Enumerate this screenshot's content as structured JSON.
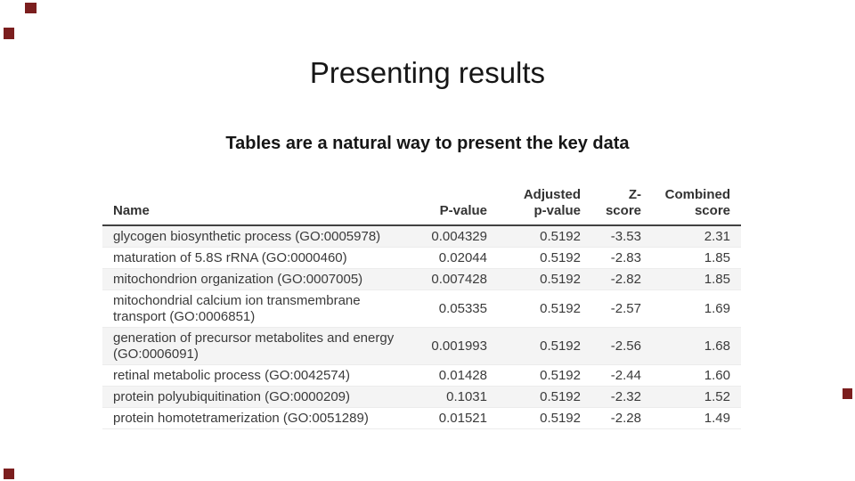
{
  "slide": {
    "title": "Presenting results",
    "subtitle": "Tables are a natural way to present the key data"
  },
  "table": {
    "headers": [
      "Name",
      "P-value",
      "Adjusted\np-value",
      "Z-\nscore",
      "Combined\nscore"
    ],
    "rows": [
      [
        "glycogen biosynthetic process (GO:0005978)",
        "0.004329",
        "0.5192",
        "-3.53",
        "2.31"
      ],
      [
        "maturation of 5.8S rRNA (GO:0000460)",
        "0.02044",
        "0.5192",
        "-2.83",
        "1.85"
      ],
      [
        "mitochondrion organization (GO:0007005)",
        "0.007428",
        "0.5192",
        "-2.82",
        "1.85"
      ],
      [
        "mitochondrial calcium ion transmembrane transport (GO:0006851)",
        "0.05335",
        "0.5192",
        "-2.57",
        "1.69"
      ],
      [
        "generation of precursor metabolites and energy (GO:0006091)",
        "0.001993",
        "0.5192",
        "-2.56",
        "1.68"
      ],
      [
        "retinal metabolic process (GO:0042574)",
        "0.01428",
        "0.5192",
        "-2.44",
        "1.60"
      ],
      [
        "protein polyubiquitination (GO:0000209)",
        "0.1031",
        "0.5192",
        "-2.32",
        "1.52"
      ],
      [
        "protein homotetramerization (GO:0051289)",
        "0.01521",
        "0.5192",
        "-2.28",
        "1.49"
      ]
    ]
  },
  "colors": {
    "corner_mark": "#7b1e1e",
    "row_stripe": "#f4f4f4",
    "header_rule": "#414141"
  }
}
